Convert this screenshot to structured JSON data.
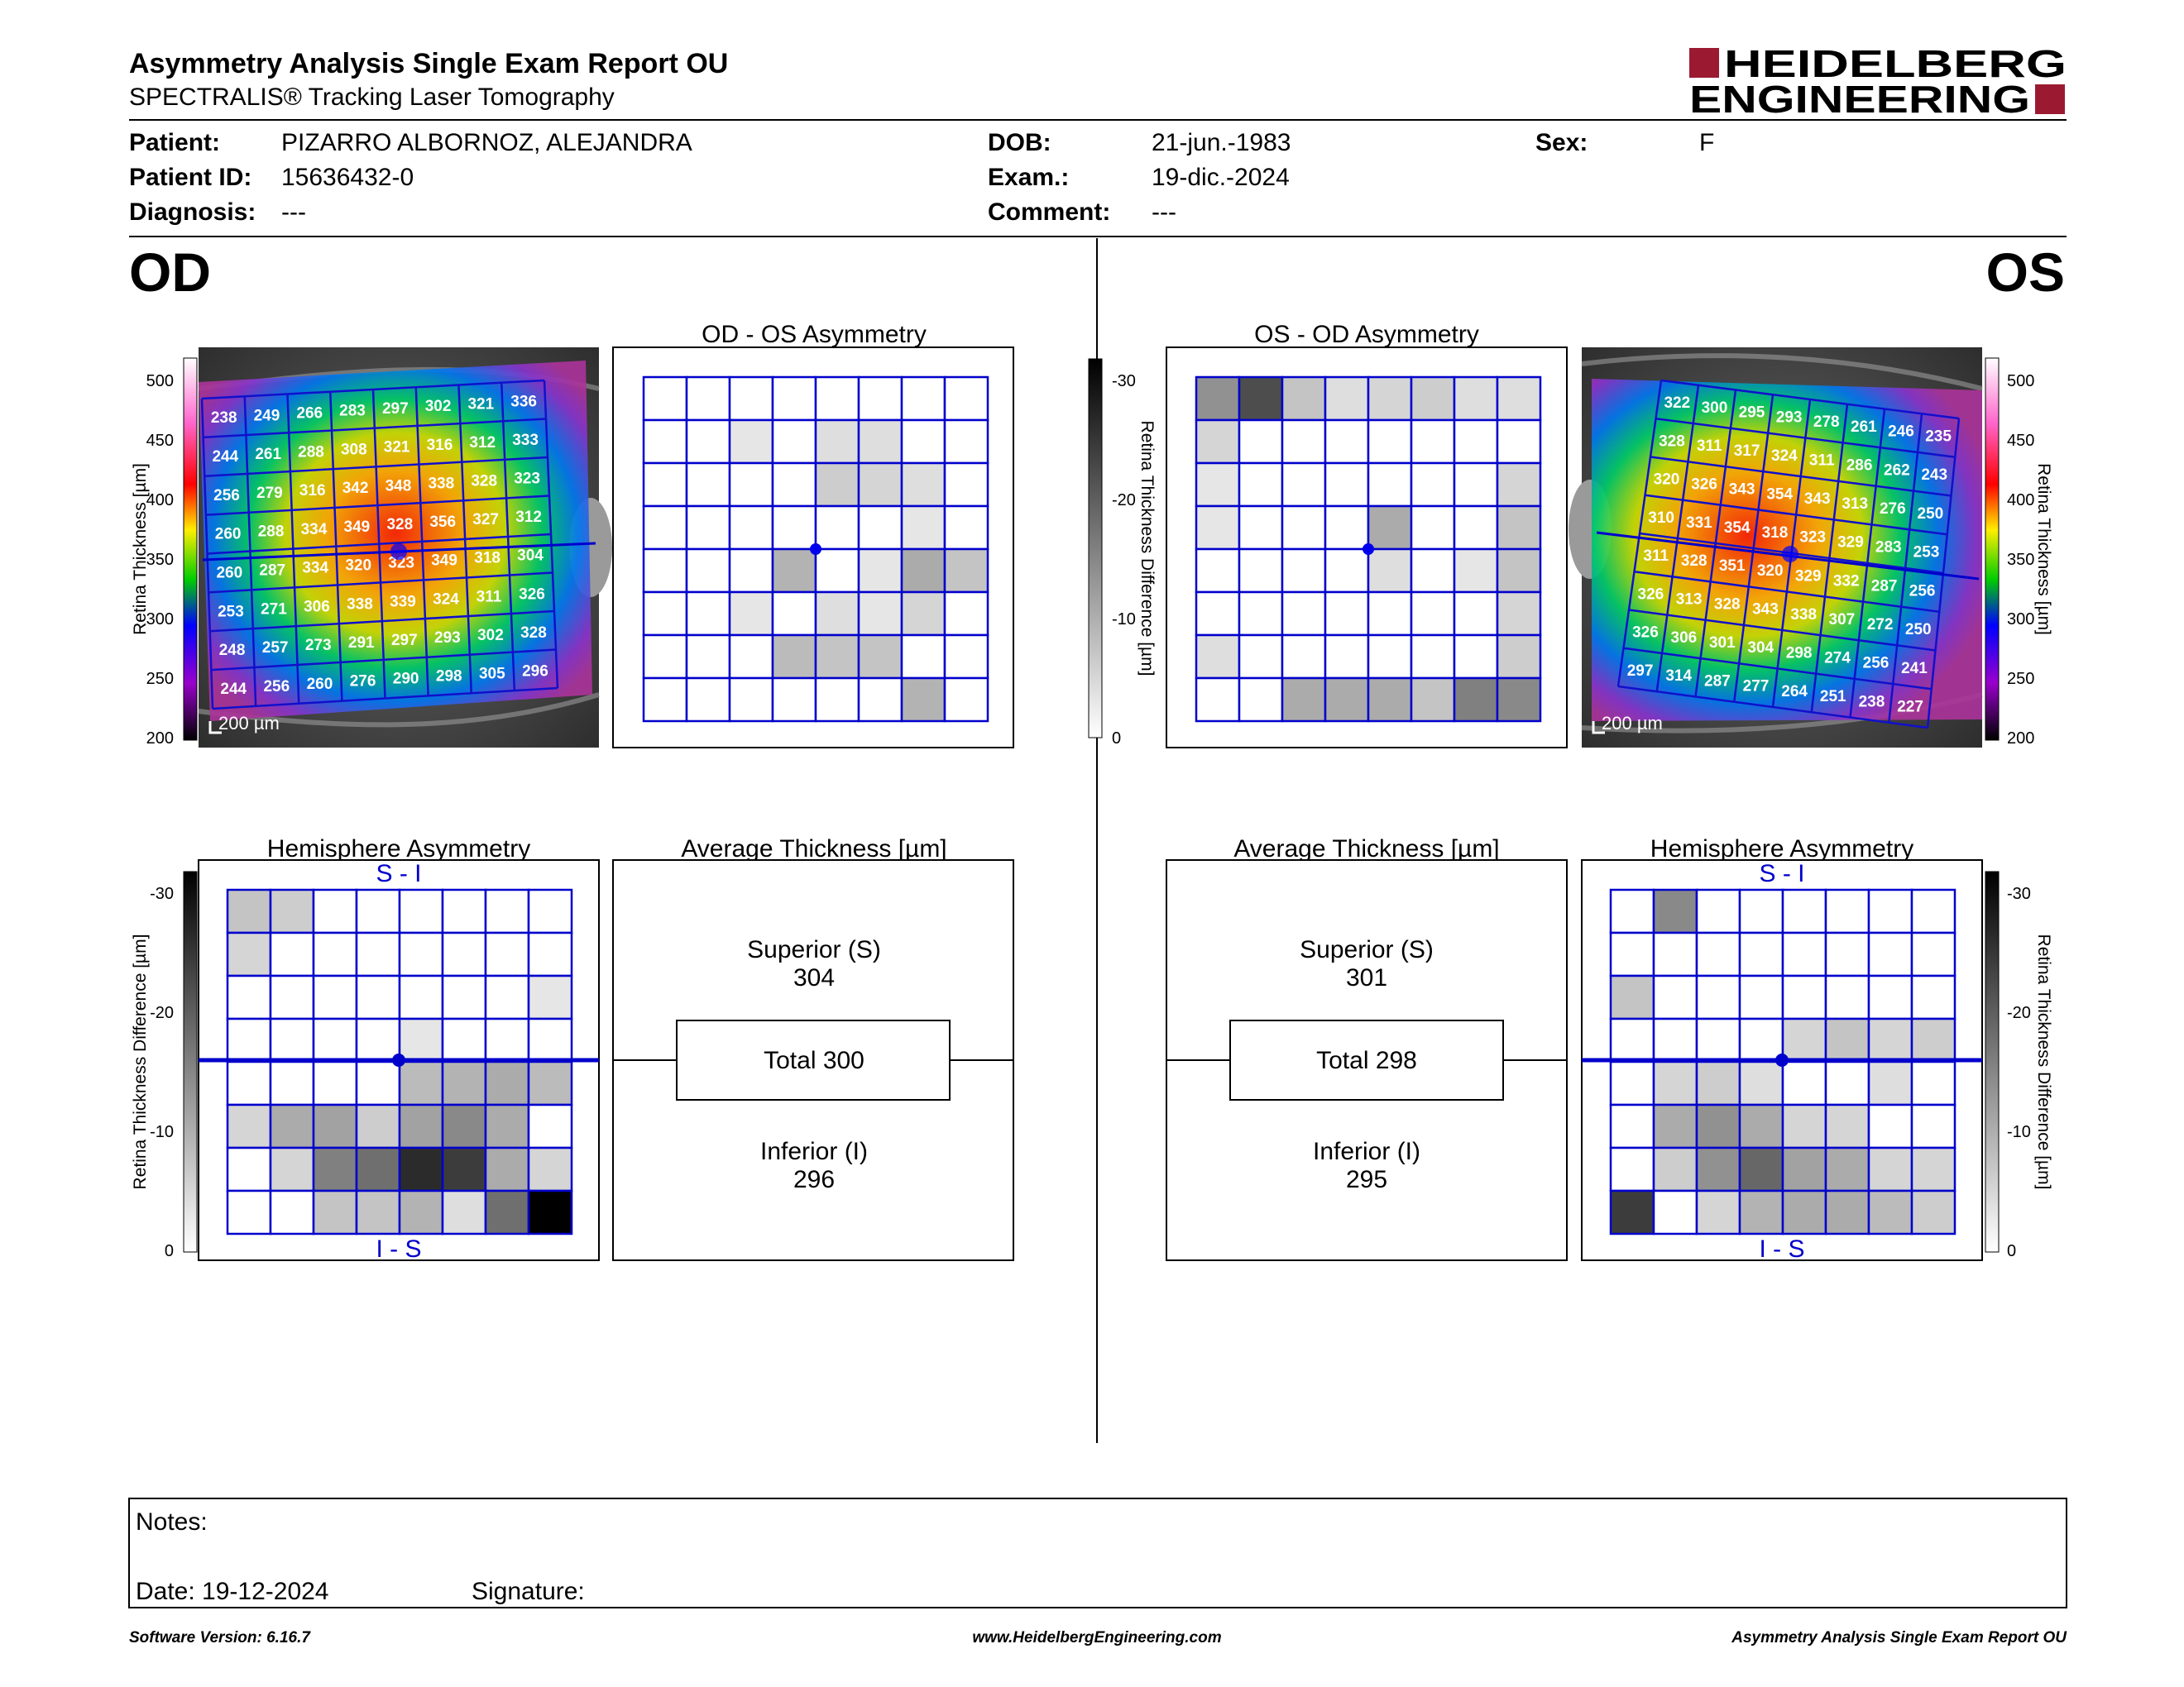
{
  "header": {
    "title": "Asymmetry Analysis Single Exam Report OU",
    "subtitle": "SPECTRALIS® Tracking Laser Tomography",
    "logo_line1": "HEIDELBERG",
    "logo_line2": "ENGINEERING"
  },
  "patient": {
    "name_label": "Patient:",
    "name": "PIZARRO ALBORNOZ, ALEJANDRA",
    "id_label": "Patient ID:",
    "id": "15636432-0",
    "diagnosis_label": "Diagnosis:",
    "diagnosis": "---",
    "dob_label": "DOB:",
    "dob": "21-jun.-1983",
    "exam_label": "Exam.:",
    "exam": "19-dic.-2024",
    "comment_label": "Comment:",
    "comment": "---",
    "sex_label": "Sex:",
    "sex": "F"
  },
  "od": {
    "eye_label": "OD",
    "asym_title": "OD - OS Asymmetry",
    "hemi_title": "Hemisphere Asymmetry",
    "hemi_top": "S - I",
    "hemi_bottom": "I - S",
    "avg_title": "Average Thickness [µm]",
    "superior_label": "Superior (S)",
    "superior": "304",
    "total": "Total 300",
    "inferior_label": "Inferior (I)",
    "inferior": "296",
    "scale_bar": "200 µm",
    "thickness_grid": [
      [
        238,
        249,
        266,
        283,
        297,
        302,
        321,
        336
      ],
      [
        244,
        261,
        288,
        308,
        321,
        316,
        312,
        333
      ],
      [
        256,
        279,
        316,
        342,
        348,
        338,
        328,
        323
      ],
      [
        260,
        288,
        334,
        349,
        328,
        356,
        327,
        312
      ],
      [
        260,
        287,
        334,
        320,
        323,
        349,
        318,
        304
      ],
      [
        253,
        271,
        306,
        338,
        339,
        324,
        311,
        326
      ],
      [
        248,
        257,
        273,
        291,
        297,
        293,
        302,
        328
      ],
      [
        244,
        256,
        260,
        276,
        290,
        298,
        305,
        296
      ]
    ],
    "asym_grid": [
      [
        0,
        0,
        0,
        0,
        0,
        0,
        0,
        0
      ],
      [
        0,
        0,
        2,
        0,
        3,
        3,
        0,
        0
      ],
      [
        0,
        0,
        0,
        0,
        5,
        4,
        3,
        0
      ],
      [
        0,
        0,
        0,
        0,
        0,
        0,
        2,
        0
      ],
      [
        0,
        0,
        0,
        8,
        0,
        2,
        9,
        6
      ],
      [
        0,
        0,
        2,
        0,
        3,
        2,
        4,
        0
      ],
      [
        0,
        0,
        0,
        7,
        6,
        6,
        0,
        0
      ],
      [
        0,
        0,
        0,
        0,
        0,
        0,
        8,
        0
      ]
    ],
    "hemi_grid": [
      [
        6,
        5,
        0,
        0,
        0,
        0,
        0,
        0
      ],
      [
        4,
        0,
        0,
        0,
        0,
        0,
        0,
        0
      ],
      [
        0,
        0,
        0,
        0,
        0,
        0,
        0,
        2
      ],
      [
        0,
        0,
        0,
        0,
        2,
        0,
        0,
        0
      ],
      [
        0,
        0,
        0,
        0,
        7,
        8,
        9,
        7
      ],
      [
        4,
        9,
        10,
        5,
        10,
        13,
        9,
        0
      ],
      [
        0,
        4,
        14,
        16,
        24,
        22,
        9,
        4
      ],
      [
        0,
        0,
        6,
        6,
        8,
        3,
        16,
        29
      ]
    ]
  },
  "os": {
    "eye_label": "OS",
    "asym_title": "OS - OD Asymmetry",
    "hemi_title": "Hemisphere Asymmetry",
    "hemi_top": "S - I",
    "hemi_bottom": "I - S",
    "avg_title": "Average Thickness [µm]",
    "superior_label": "Superior (S)",
    "superior": "301",
    "total": "Total 298",
    "inferior_label": "Inferior (I)",
    "inferior": "295",
    "scale_bar": "200 µm",
    "thickness_grid": [
      [
        322,
        300,
        295,
        293,
        278,
        261,
        246,
        235
      ],
      [
        328,
        311,
        317,
        324,
        311,
        286,
        262,
        243
      ],
      [
        320,
        326,
        343,
        354,
        343,
        313,
        276,
        250
      ],
      [
        310,
        331,
        354,
        318,
        323,
        329,
        283,
        253
      ],
      [
        311,
        328,
        351,
        320,
        329,
        332,
        287,
        256
      ],
      [
        326,
        313,
        328,
        343,
        338,
        307,
        272,
        250
      ],
      [
        326,
        306,
        301,
        304,
        298,
        274,
        256,
        241
      ],
      [
        297,
        314,
        287,
        277,
        264,
        251,
        238,
        227
      ]
    ],
    "asym_grid": [
      [
        12,
        20,
        6,
        3,
        4,
        5,
        3,
        3
      ],
      [
        4,
        0,
        0,
        0,
        0,
        0,
        0,
        0
      ],
      [
        2,
        0,
        0,
        0,
        0,
        0,
        0,
        4
      ],
      [
        2,
        0,
        0,
        0,
        9,
        0,
        0,
        6
      ],
      [
        0,
        0,
        0,
        0,
        3,
        0,
        2,
        6
      ],
      [
        0,
        0,
        0,
        0,
        0,
        0,
        0,
        4
      ],
      [
        3,
        0,
        0,
        0,
        0,
        0,
        0,
        5
      ],
      [
        0,
        0,
        9,
        9,
        9,
        6,
        14,
        13
      ]
    ],
    "hemi_grid": [
      [
        0,
        13,
        0,
        0,
        0,
        0,
        0,
        0
      ],
      [
        0,
        0,
        0,
        0,
        0,
        0,
        0,
        0
      ],
      [
        6,
        0,
        0,
        0,
        0,
        0,
        0,
        0
      ],
      [
        0,
        0,
        0,
        0,
        4,
        6,
        4,
        5
      ],
      [
        0,
        4,
        5,
        3,
        0,
        0,
        3,
        0
      ],
      [
        0,
        9,
        12,
        9,
        4,
        4,
        0,
        0
      ],
      [
        0,
        5,
        12,
        17,
        10,
        9,
        4,
        4
      ],
      [
        22,
        0,
        4,
        8,
        9,
        9,
        7,
        5
      ]
    ]
  },
  "thickness_scale": {
    "label": "Retina Thickness [µm]",
    "ticks": [
      "500",
      "450",
      "400",
      "350",
      "300",
      "250",
      "200"
    ]
  },
  "diff_scale": {
    "label": "Retina Thickness Difference [µm]",
    "ticks": [
      "-30",
      "-20",
      "-10",
      "0"
    ]
  },
  "notes": {
    "notes_label": "Notes:",
    "date_label": "Date: 19-12-2024",
    "signature_label": "Signature:"
  },
  "footer": {
    "version": "Software Version: 6.16.7",
    "website": "www.HeidelbergEngineering.com",
    "report": "Asymmetry Analysis Single Exam Report OU"
  },
  "colors": {
    "grid_blue": "#0000cc",
    "logo_red": "#9b1a32",
    "text": "#000000"
  }
}
